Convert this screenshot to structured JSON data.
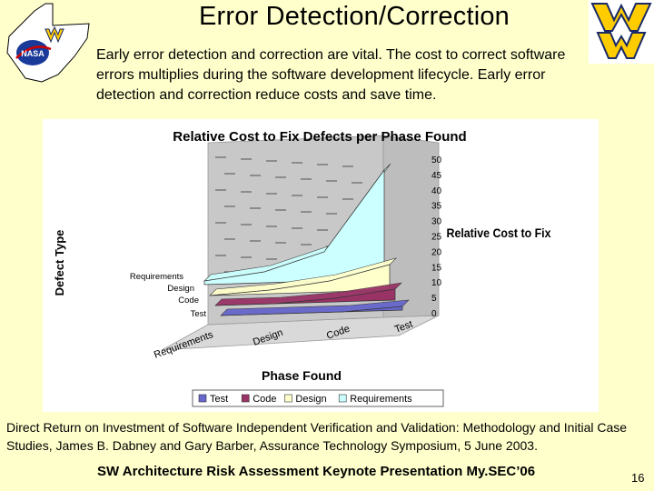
{
  "slide": {
    "title": "Error Detection/Correction",
    "intro": "Early error detection and correction are vital. The cost to correct software errors multiplies during the software development lifecycle. Early error detection and correction reduce costs and save time.",
    "source": "Direct Return on Investment of Software Independent Verification and Validation: Methodology and Initial Case Studies, James B. Dabney and Gary Barber, Assurance Technology Symposium, 5 June 2003.",
    "footer": "SW Architecture Risk Assessment Keynote Presentation My.SEC’06",
    "page_number": "16",
    "nasa_logo_text": "NASA"
  },
  "chart_data": {
    "type": "area",
    "title": "Relative Cost to Fix Defects per Phase Found",
    "xlabel": "Phase Found",
    "ylabel": "Relative Cost to Fix",
    "zlabel": "Defect Type",
    "categories": [
      "Requirements",
      "Design",
      "Code",
      "Test"
    ],
    "series": [
      {
        "name": "Test",
        "values": [
          0,
          0,
          0,
          1
        ],
        "color": "#6666cc"
      },
      {
        "name": "Code",
        "values": [
          0,
          0,
          1,
          3
        ],
        "color": "#993366"
      },
      {
        "name": "Design",
        "values": [
          0,
          1,
          3,
          7
        ],
        "color": "#ffffcc"
      },
      {
        "name": "Requirements",
        "values": [
          1,
          3,
          8,
          30
        ],
        "color": "#ccffff"
      }
    ],
    "yticks": [
      "0",
      "5",
      "10",
      "15",
      "20",
      "25",
      "30",
      "35",
      "40",
      "45",
      "50"
    ],
    "ylim": [
      0,
      50
    ],
    "legend": [
      "Test",
      "Code",
      "Design",
      "Requirements"
    ],
    "legend_position": "bottom"
  }
}
